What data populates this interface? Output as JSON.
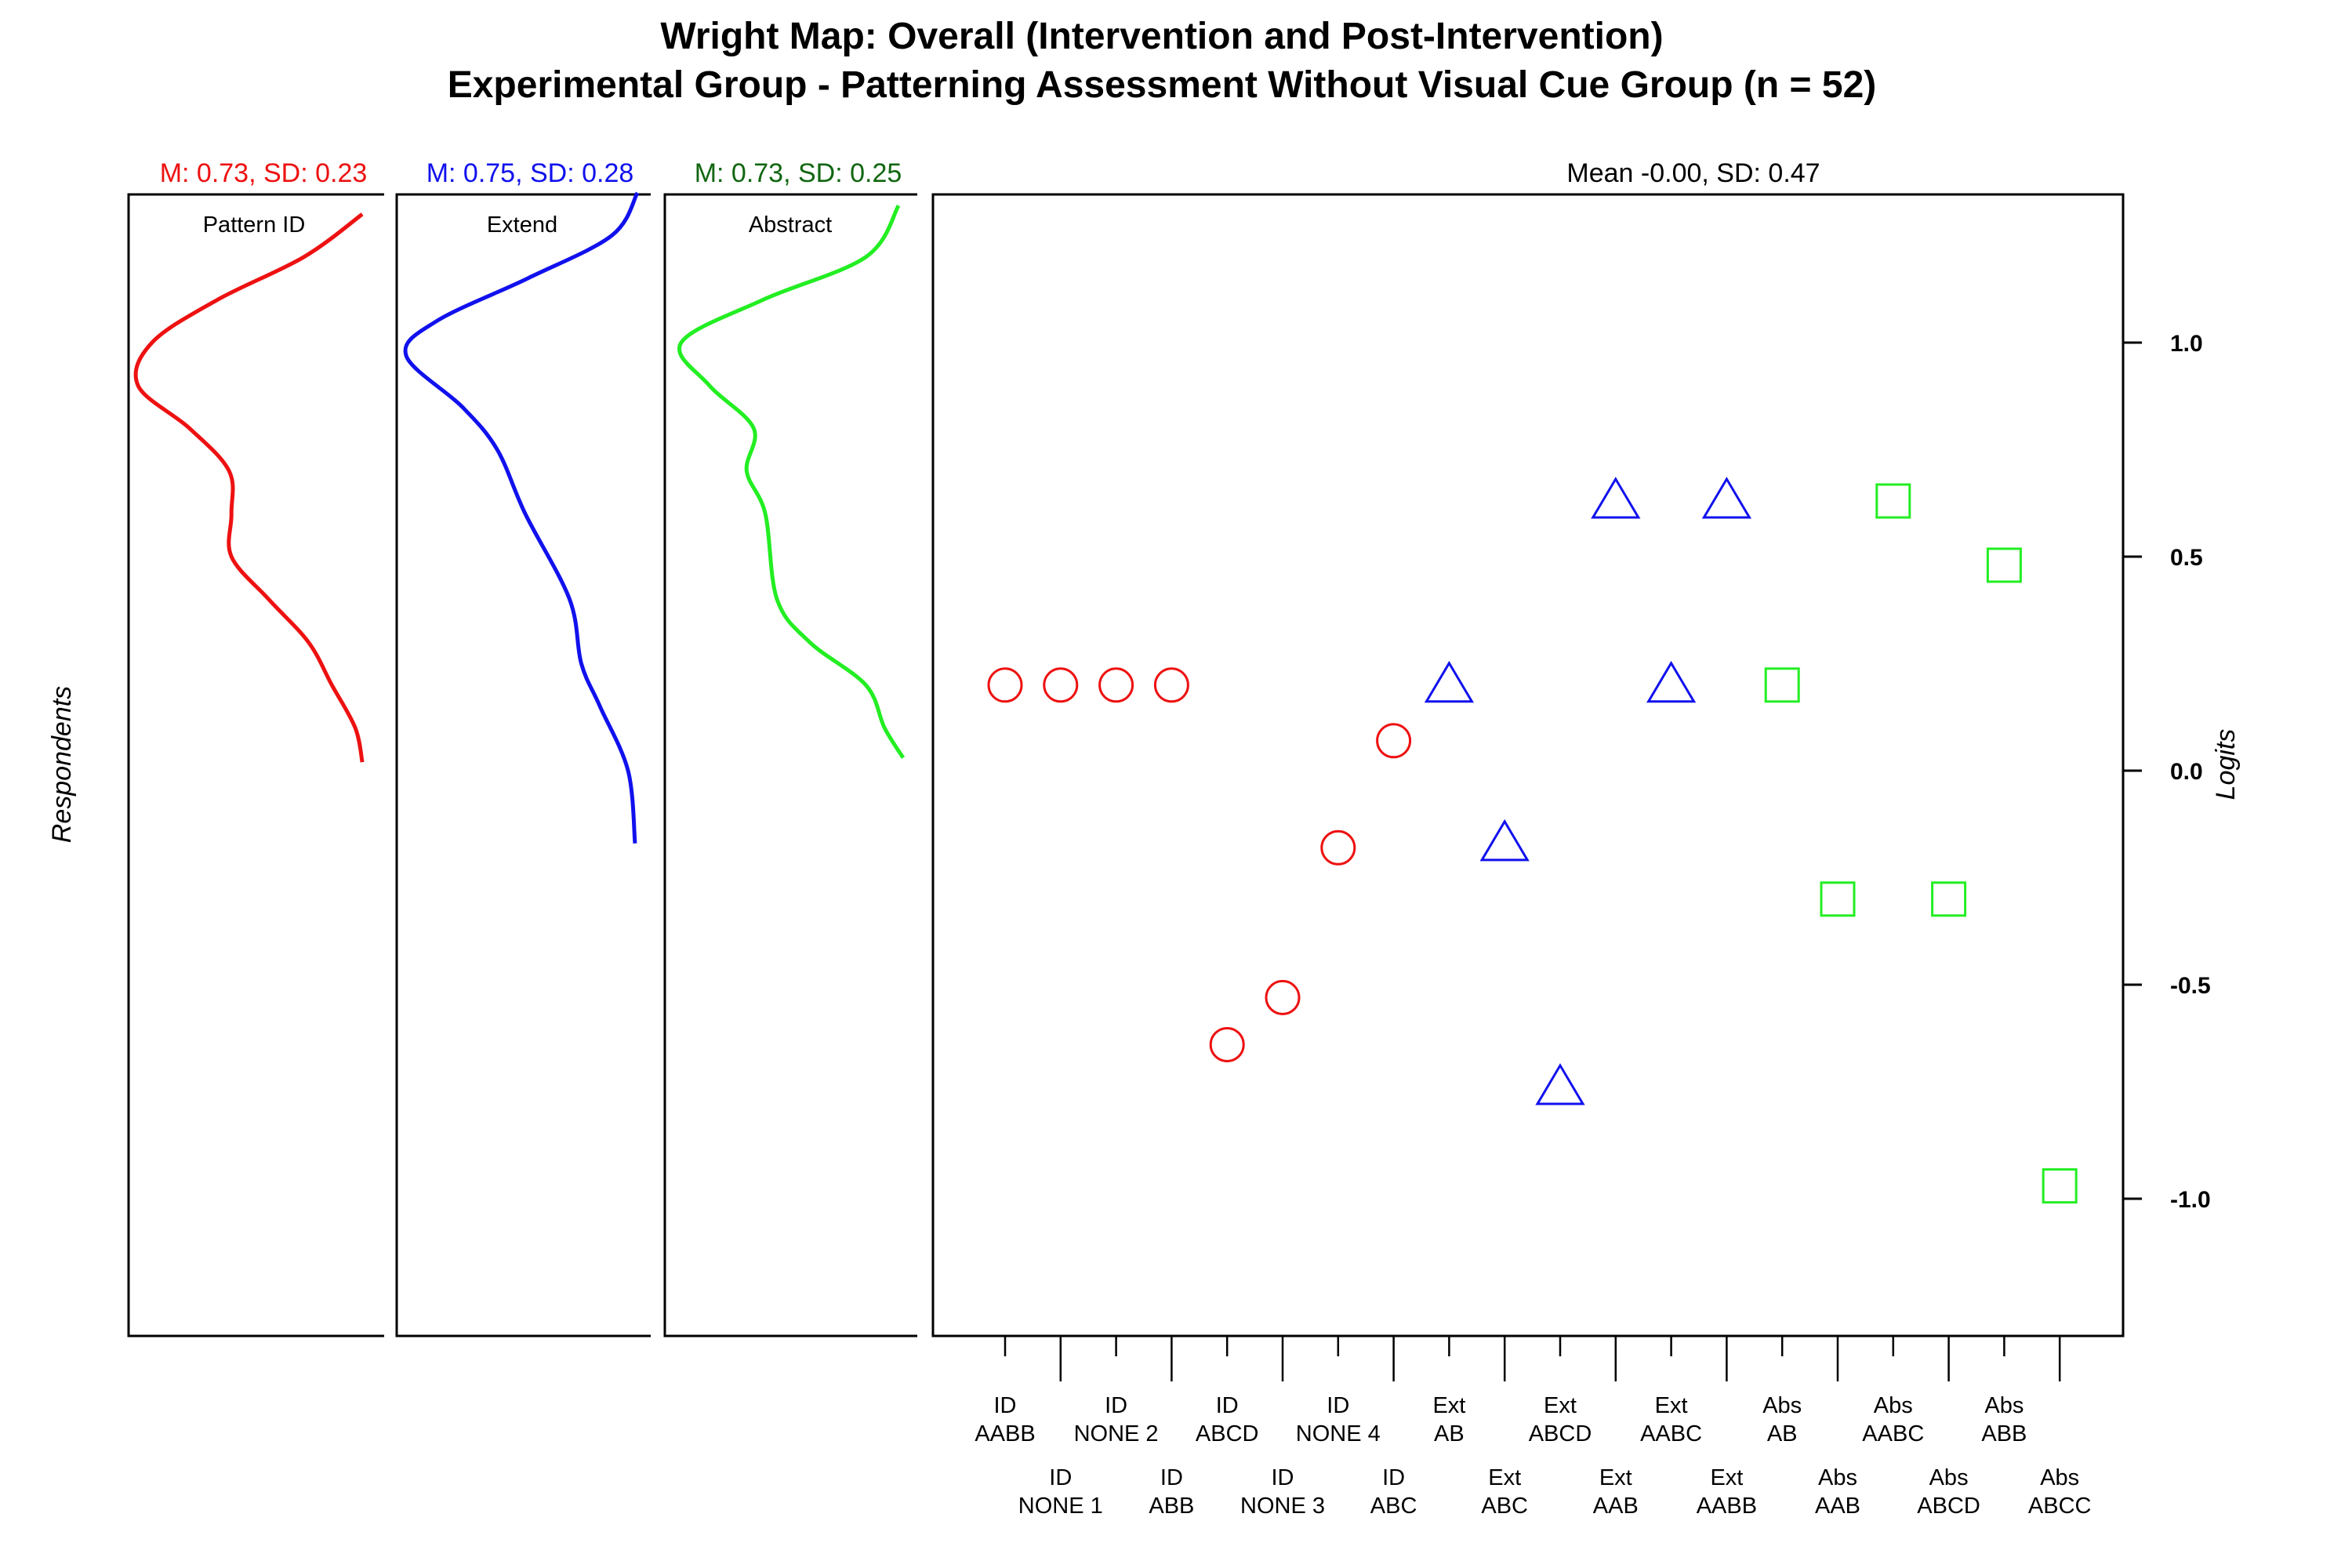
{
  "titles": {
    "line1": "Wright Map: Overall (Intervention and Post-Intervention)",
    "line2": "Experimental Group - Patterning Assessment Without Visual Cue Group (n = 52)"
  },
  "respondents_label": "Respondents",
  "panels": [
    {
      "label": "Pattern ID",
      "stat": "M: 0.73, SD: 0.23",
      "color": "#ee1111",
      "stat_color": "#ee1111"
    },
    {
      "label": "Extend",
      "stat": "M: 0.75, SD: 0.28",
      "color": "#1111ee",
      "stat_color": "#1111ee"
    },
    {
      "label": "Abstract",
      "stat": "M: 0.73, SD: 0.25",
      "color": "#22ee22",
      "stat_color": "#116611"
    }
  ],
  "chart_data": {
    "type": "scatter",
    "title": "Wright Map: Overall (Intervention and Post-Intervention)",
    "subtitle": "Experimental Group - Patterning Assessment Without Visual Cue Group (n = 52)",
    "stat_label": "Mean -0.00, SD: 0.47",
    "ylabel": "Logits",
    "ylim": [
      -1.32,
      1.36
    ],
    "yticks": [
      1.0,
      0.5,
      0.0,
      -0.5,
      -1.0
    ],
    "ytick_labels": [
      "1.0",
      "0.5",
      "0.0",
      "-0.5",
      "-1.0"
    ],
    "items": [
      {
        "line1": "ID",
        "line2": "AABB",
        "y": 0.2,
        "group": "Pattern ID"
      },
      {
        "line1": "ID",
        "line2": "NONE 1",
        "y": 0.2,
        "group": "Pattern ID"
      },
      {
        "line1": "ID",
        "line2": "NONE 2",
        "y": 0.2,
        "group": "Pattern ID"
      },
      {
        "line1": "ID",
        "line2": "ABB",
        "y": 0.2,
        "group": "Pattern ID"
      },
      {
        "line1": "ID",
        "line2": "ABCD",
        "y": -0.64,
        "group": "Pattern ID"
      },
      {
        "line1": "ID",
        "line2": "NONE 3",
        "y": -0.53,
        "group": "Pattern ID"
      },
      {
        "line1": "ID",
        "line2": "NONE 4",
        "y": -0.18,
        "group": "Pattern ID"
      },
      {
        "line1": "ID",
        "line2": "ABC",
        "y": 0.07,
        "group": "Pattern ID"
      },
      {
        "line1": "Ext",
        "line2": "AB",
        "y": 0.2,
        "group": "Extend"
      },
      {
        "line1": "Ext",
        "line2": "ABC",
        "y": -0.17,
        "group": "Extend"
      },
      {
        "line1": "Ext",
        "line2": "ABCD",
        "y": -0.74,
        "group": "Extend"
      },
      {
        "line1": "Ext",
        "line2": "AAB",
        "y": 0.63,
        "group": "Extend"
      },
      {
        "line1": "Ext",
        "line2": "AABC",
        "y": 0.2,
        "group": "Extend"
      },
      {
        "line1": "Ext",
        "line2": "AABB",
        "y": 0.63,
        "group": "Extend"
      },
      {
        "line1": "Abs",
        "line2": "AB",
        "y": 0.2,
        "group": "Abstract"
      },
      {
        "line1": "Abs",
        "line2": "AAB",
        "y": -0.3,
        "group": "Abstract"
      },
      {
        "line1": "Abs",
        "line2": "AABC",
        "y": 0.63,
        "group": "Abstract"
      },
      {
        "line1": "Abs",
        "line2": "ABCD",
        "y": -0.3,
        "group": "Abstract"
      },
      {
        "line1": "Abs",
        "line2": "ABB",
        "y": 0.48,
        "group": "Abstract"
      },
      {
        "line1": "Abs",
        "line2": "ABCC",
        "y": -0.97,
        "group": "Abstract"
      }
    ],
    "markers": {
      "Pattern ID": "circle",
      "Extend": "triangle",
      "Abstract": "square"
    },
    "density_curves": [
      {
        "group": "Pattern ID",
        "points": [
          [
            1.3,
            0.96
          ],
          [
            1.2,
            0.71
          ],
          [
            1.1,
            0.34
          ],
          [
            1.0,
            0.06
          ],
          [
            0.9,
            0.0
          ],
          [
            0.8,
            0.22
          ],
          [
            0.7,
            0.39
          ],
          [
            0.6,
            0.4
          ],
          [
            0.5,
            0.4
          ],
          [
            0.4,
            0.56
          ],
          [
            0.3,
            0.73
          ],
          [
            0.2,
            0.83
          ],
          [
            0.1,
            0.93
          ],
          [
            0.02,
            0.96
          ]
        ]
      },
      {
        "group": "Extend",
        "points": [
          [
            1.35,
            0.99
          ],
          [
            1.25,
            0.88
          ],
          [
            1.15,
            0.52
          ],
          [
            1.05,
            0.13
          ],
          [
            0.97,
            0.0
          ],
          [
            0.85,
            0.24
          ],
          [
            0.75,
            0.39
          ],
          [
            0.6,
            0.51
          ],
          [
            0.4,
            0.7
          ],
          [
            0.25,
            0.75
          ],
          [
            0.15,
            0.83
          ],
          [
            0.0,
            0.95
          ],
          [
            -0.17,
            0.98
          ]
        ]
      },
      {
        "group": "Abstract",
        "points": [
          [
            1.32,
            0.96
          ],
          [
            1.2,
            0.82
          ],
          [
            1.1,
            0.38
          ],
          [
            1.0,
            0.03
          ],
          [
            0.9,
            0.15
          ],
          [
            0.8,
            0.34
          ],
          [
            0.7,
            0.31
          ],
          [
            0.6,
            0.39
          ],
          [
            0.4,
            0.44
          ],
          [
            0.3,
            0.58
          ],
          [
            0.2,
            0.82
          ],
          [
            0.1,
            0.9
          ],
          [
            0.03,
            0.98
          ]
        ]
      }
    ]
  }
}
